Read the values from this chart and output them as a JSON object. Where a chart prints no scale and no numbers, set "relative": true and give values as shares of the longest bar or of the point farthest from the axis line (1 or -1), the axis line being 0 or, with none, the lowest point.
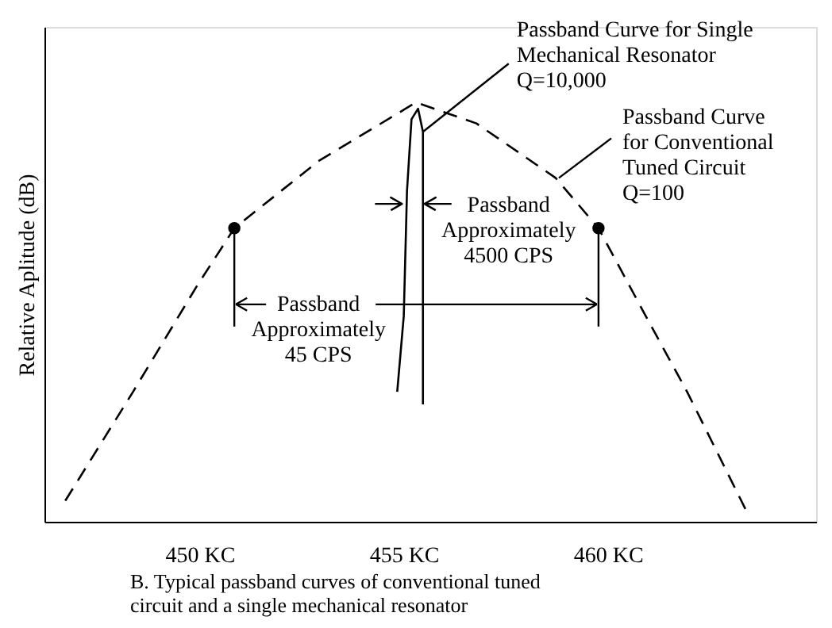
{
  "chart_data": {
    "type": "line",
    "relative": true,
    "title": "B. Typical passband curves of conventional tuned circuit and a single mechanical resonator",
    "ylabel": "Relative Aplitude (dB)",
    "xlim": [
      446.2,
      465.1
    ],
    "xticks": [
      {
        "value": 450,
        "label": "450 KC"
      },
      {
        "value": 455,
        "label": "455 KC"
      },
      {
        "value": 460,
        "label": "460 KC"
      }
    ],
    "grid": false,
    "series": [
      {
        "type": "line",
        "line_style": "dashed",
        "marker": "none",
        "color": "#000000",
        "x": [
          446.71,
          448.37,
          449.92,
          450.85,
          452.91,
          455.3,
          456.78,
          458.72,
          459.77,
          460.93,
          461.94,
          463.37
        ],
        "values": [
          0.05,
          0.31,
          0.56,
          0.7,
          0.86,
          1.0,
          0.95,
          0.82,
          0.7,
          0.49,
          0.31,
          0.03
        ]
      },
      {
        "type": "line",
        "line_style": "solid",
        "marker": "none",
        "color": "#000000",
        "x": [
          454.84,
          455.0,
          455.08,
          455.19,
          455.35,
          455.47,
          455.47
        ],
        "values": [
          0.31,
          0.49,
          0.79,
          0.96,
          0.985,
          0.93,
          0.28
        ]
      },
      {
        "type": "scatter",
        "marker": "circle",
        "color": "#000000",
        "x": [
          450.85,
          459.77
        ],
        "values": [
          0.7,
          0.7
        ]
      }
    ],
    "annotations": [
      {
        "text": "Passband Curve for Single Mechanical Resonator Q=10,000",
        "x": 455.47,
        "y": 0.93
      },
      {
        "text": "Passband Curve for Conventional Tuned Circuit Q=100",
        "x": 458.8,
        "y": 0.82
      },
      "Passband Approximately 4500 CPS",
      "Passband Approximately 45 CPS"
    ]
  }
}
